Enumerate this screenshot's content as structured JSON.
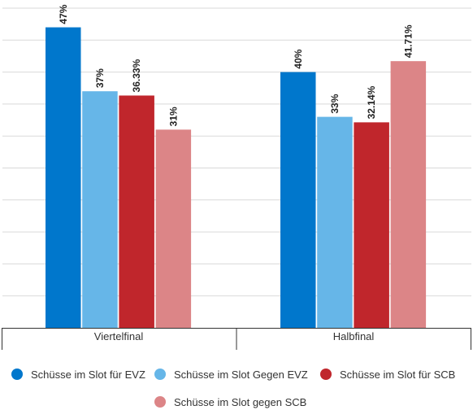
{
  "chart_data": {
    "type": "bar",
    "categories": [
      "Viertelfinal",
      "Halbfinal"
    ],
    "series": [
      {
        "name": "Schüsse im Slot für EVZ",
        "color": "#0077cc",
        "values": [
          47,
          40
        ],
        "labels": [
          "47%",
          "40%"
        ]
      },
      {
        "name": "Schüsse im Slot Gegen EVZ",
        "color": "#66b6e8",
        "values": [
          37,
          33
        ],
        "labels": [
          "37%",
          "33%"
        ]
      },
      {
        "name": "Schüsse im Slot für SCB",
        "color": "#c0262c",
        "values": [
          36.33,
          32.14
        ],
        "labels": [
          "36.33%",
          "32.14%"
        ]
      },
      {
        "name": "Schüsse im Slot gegen SCB",
        "color": "#dc8587",
        "values": [
          31,
          41.71
        ],
        "labels": [
          "31%",
          "41.71%"
        ]
      }
    ],
    "ylim": [
      0,
      50
    ],
    "y_gridlines": [
      0,
      5,
      10,
      15,
      20,
      25,
      30,
      35,
      40,
      45,
      50
    ],
    "grid": true,
    "legend_position": "bottom",
    "title": "",
    "xlabel": "",
    "ylabel": ""
  }
}
